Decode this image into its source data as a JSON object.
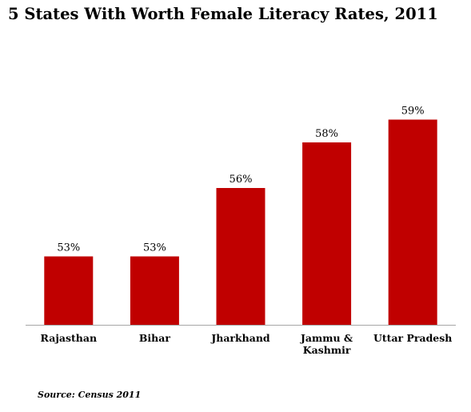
{
  "chart_data": {
    "type": "bar",
    "title": "5 States With Worth Female Literacy Rates, 2011",
    "categories": [
      "Rajasthan",
      "Bihar",
      "Jharkhand",
      "Jammu & Kashmir",
      "Uttar Pradesh"
    ],
    "category_lines": [
      [
        "Rajasthan"
      ],
      [
        "Bihar"
      ],
      [
        "Jharkhand"
      ],
      [
        "Jammu &",
        "Kashmir"
      ],
      [
        "Uttar Pradesh"
      ]
    ],
    "values": [
      53,
      53,
      56,
      58,
      59
    ],
    "value_labels": [
      "53%",
      "53%",
      "56%",
      "58%",
      "59%"
    ],
    "xlabel": "",
    "ylabel": "",
    "ylim": [
      50,
      60
    ],
    "grid": false,
    "legend": "none",
    "bar_color": "#c00000",
    "axis_color": "#a6a6a6",
    "source": "Source: Census 2011"
  }
}
